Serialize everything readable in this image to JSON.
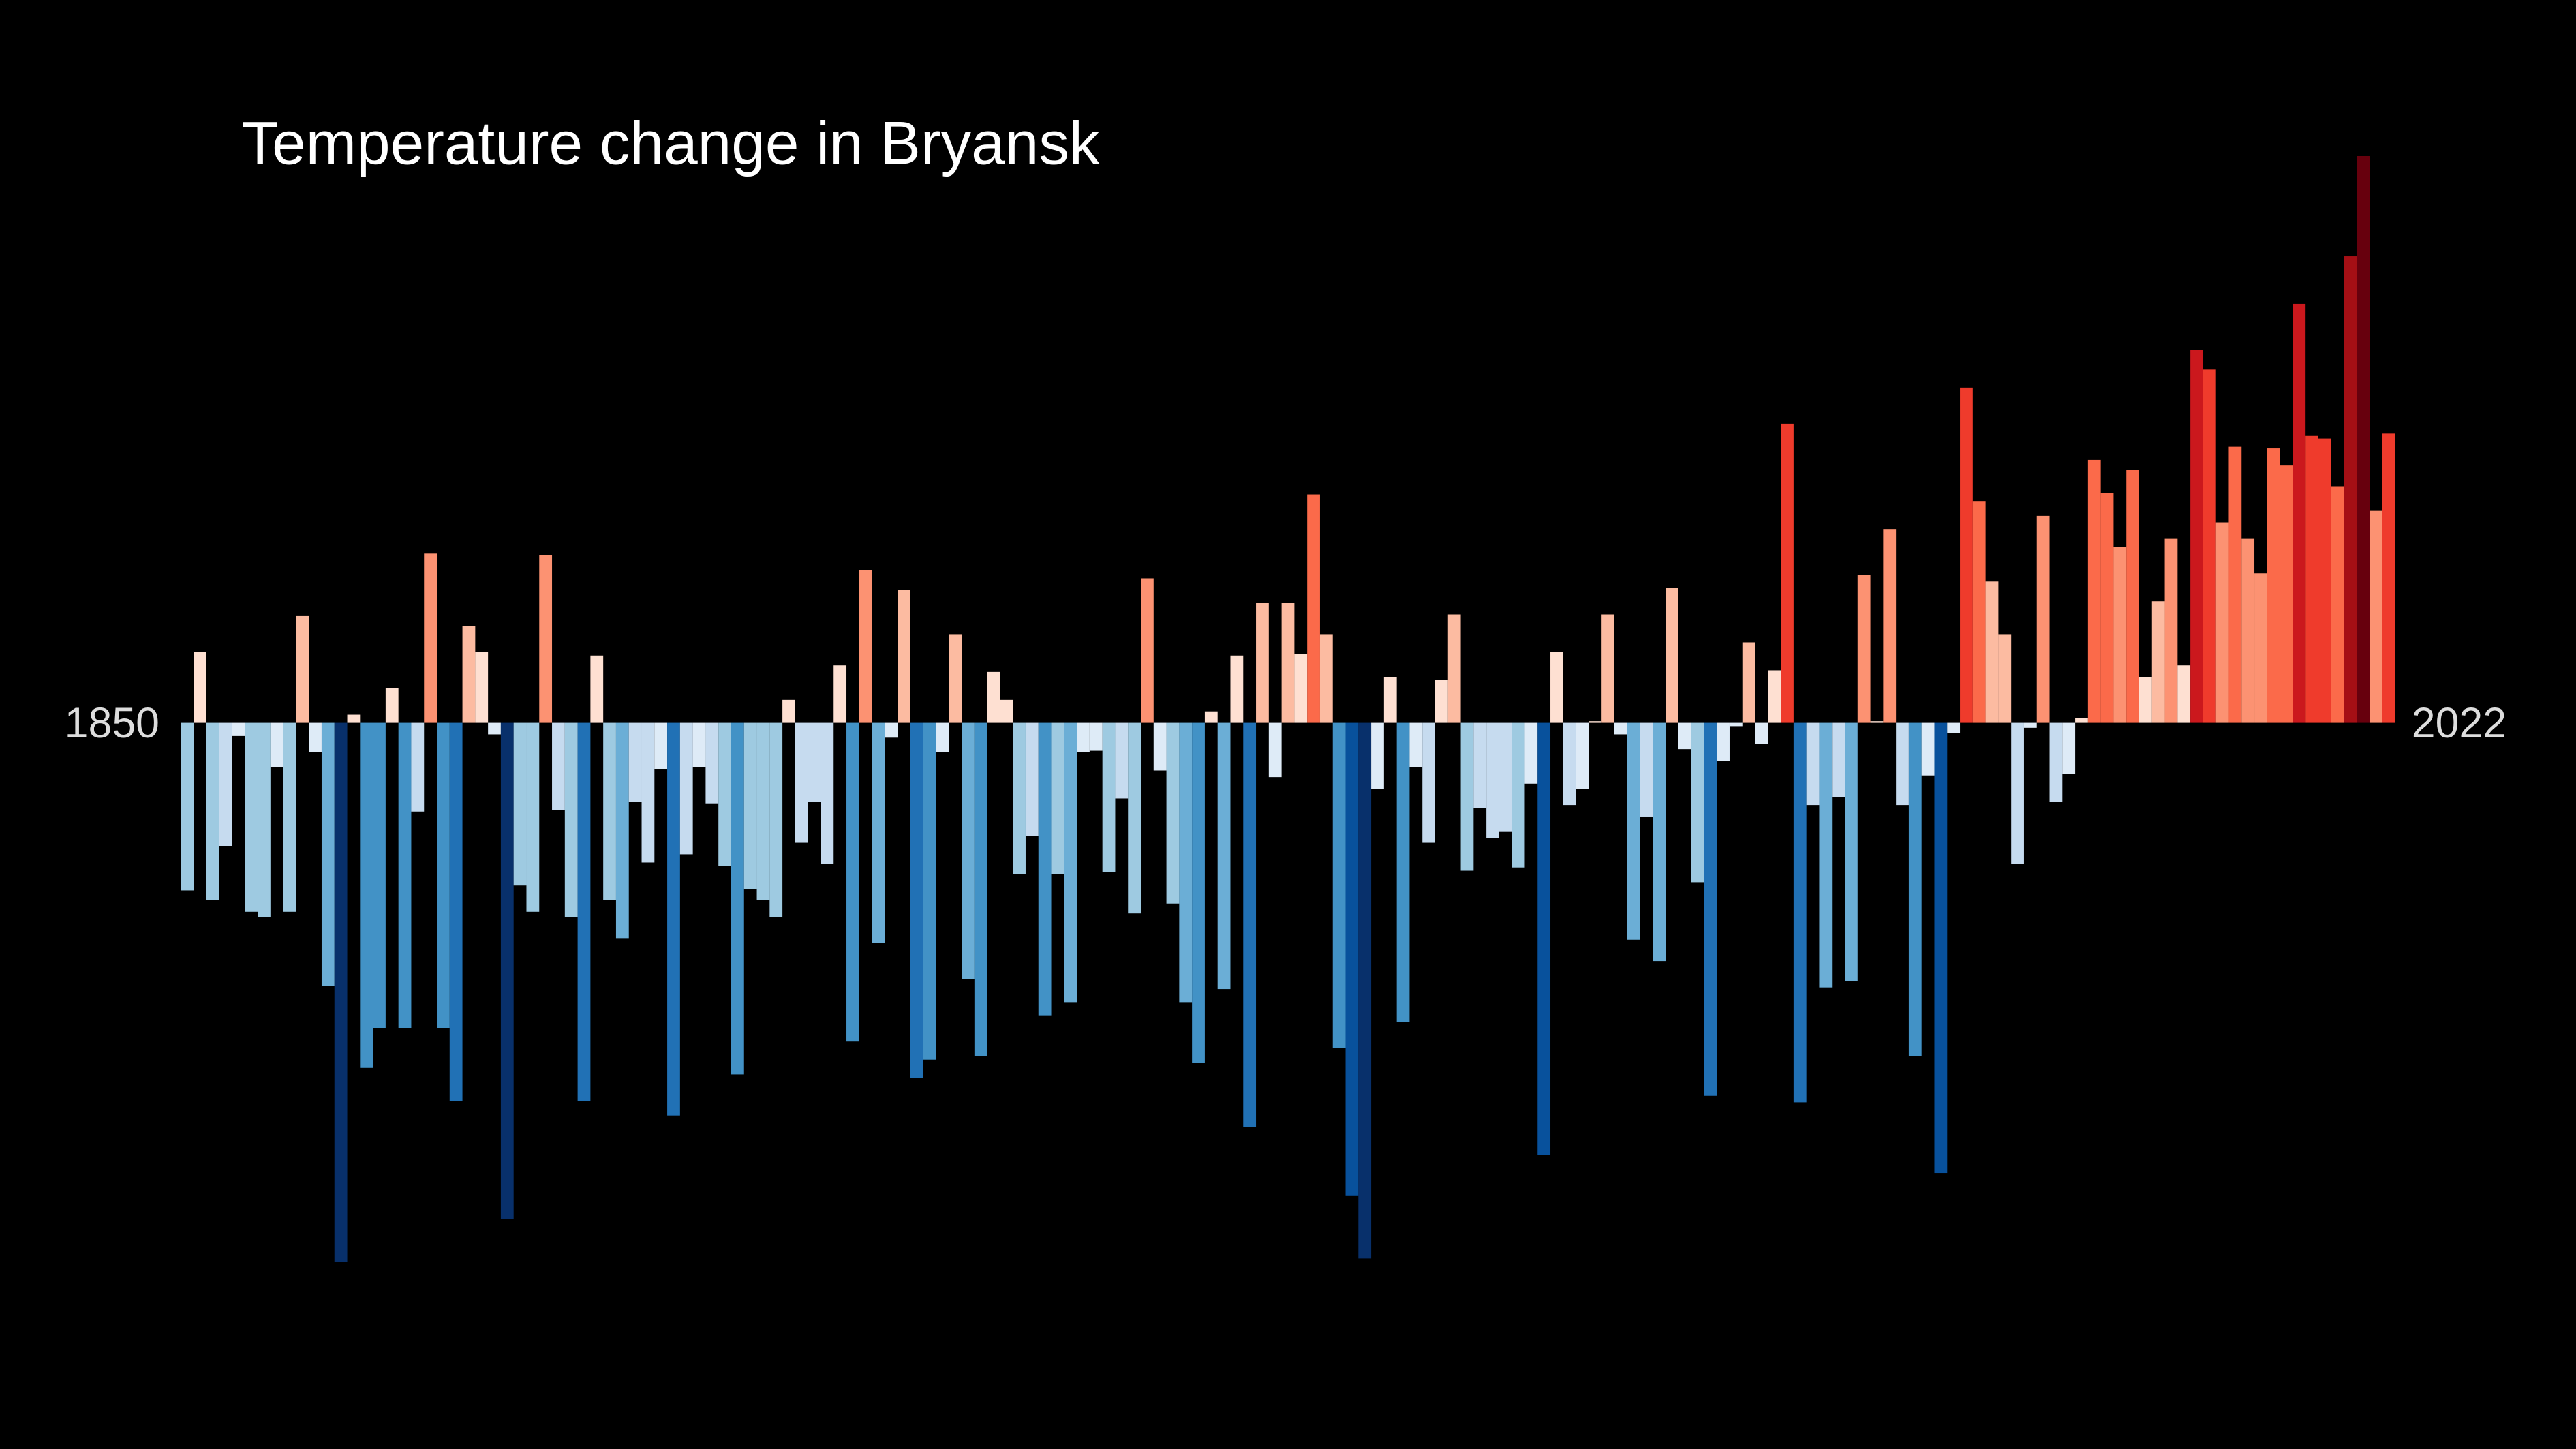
{
  "chart_data": {
    "type": "bar",
    "title": "Temperature change in Bryansk",
    "categories": [
      "1850",
      null,
      null,
      null,
      null,
      null,
      null,
      null,
      null,
      null,
      null,
      null,
      null,
      null,
      null,
      null,
      null,
      null,
      null,
      null,
      null,
      null,
      null,
      null,
      null,
      null,
      null,
      null,
      null,
      null,
      null,
      null,
      null,
      null,
      null,
      null,
      null,
      null,
      null,
      null,
      null,
      null,
      null,
      null,
      null,
      null,
      null,
      null,
      null,
      null,
      null,
      null,
      null,
      null,
      null,
      null,
      null,
      null,
      null,
      null,
      null,
      null,
      null,
      null,
      null,
      null,
      null,
      null,
      null,
      null,
      null,
      null,
      null,
      null,
      null,
      null,
      null,
      null,
      null,
      null,
      null,
      null,
      null,
      null,
      null,
      null,
      null,
      null,
      null,
      null,
      null,
      null,
      null,
      null,
      null,
      null,
      null,
      null,
      null,
      null,
      null,
      null,
      null,
      null,
      null,
      null,
      null,
      null,
      null,
      null,
      null,
      null,
      null,
      null,
      null,
      null,
      null,
      null,
      null,
      null,
      null,
      null,
      null,
      null,
      null,
      null,
      null,
      null,
      null,
      null,
      null,
      null,
      null,
      null,
      null,
      null,
      null,
      null,
      null,
      null,
      null,
      null,
      null,
      null,
      null,
      null,
      null,
      null,
      null,
      null,
      null,
      null,
      null,
      null,
      null,
      null,
      null,
      null,
      null,
      null,
      null,
      null,
      null,
      null,
      null,
      null,
      null,
      null,
      null,
      null,
      null,
      null,
      "2022"
    ],
    "values": [
      -1.02,
      0.43,
      -1.08,
      -0.75,
      -0.08,
      -1.15,
      -1.18,
      -0.27,
      -1.15,
      0.65,
      -0.18,
      -1.6,
      -3.28,
      0.05,
      -2.1,
      -1.86,
      0.21,
      -1.86,
      -0.54,
      1.03,
      -1.86,
      -2.3,
      0.59,
      0.43,
      -0.07,
      -3.02,
      -0.99,
      -1.15,
      1.02,
      -0.53,
      -1.18,
      -2.3,
      0.41,
      -1.08,
      -1.31,
      -0.48,
      -0.85,
      -0.28,
      -2.39,
      -0.8,
      -0.27,
      -0.49,
      -0.87,
      -2.14,
      -1.01,
      -1.08,
      -1.18,
      0.14,
      -0.73,
      -0.48,
      -0.86,
      0.35,
      -1.94,
      0.93,
      -1.34,
      -0.09,
      0.81,
      -2.16,
      -2.05,
      -0.18,
      0.54,
      -1.56,
      -2.03,
      0.31,
      0.14,
      -0.92,
      -0.69,
      -1.78,
      -0.92,
      -1.7,
      -0.18,
      -0.17,
      -0.91,
      -0.46,
      -1.16,
      0.88,
      -0.29,
      -1.1,
      -1.7,
      -2.07,
      0.07,
      -1.62,
      0.41,
      -2.46,
      0.73,
      -0.33,
      0.73,
      0.42,
      1.39,
      0.54,
      -1.98,
      -2.88,
      -3.26,
      -0.4,
      0.28,
      -1.82,
      -0.27,
      -0.73,
      0.26,
      0.66,
      -0.9,
      -0.52,
      -0.7,
      -0.66,
      -0.88,
      -0.37,
      -2.63,
      0.43,
      -0.5,
      -0.4,
      0.01,
      0.66,
      -0.07,
      -1.32,
      -0.57,
      -1.45,
      0.82,
      -0.16,
      -0.97,
      -2.27,
      -0.23,
      -0.02,
      0.49,
      -0.13,
      0.32,
      1.82,
      -2.31,
      -0.5,
      -1.61,
      -0.45,
      -1.57,
      0.9,
      0.01,
      1.18,
      -0.5,
      -2.03,
      -0.32,
      -2.74,
      -0.06,
      2.04,
      1.35,
      0.86,
      0.54,
      -0.86,
      -0.03,
      1.26,
      -0.48,
      -0.31,
      0.03,
      1.6,
      1.4,
      1.07,
      1.54,
      0.28,
      0.74,
      1.12,
      0.35,
      2.27,
      2.15,
      1.22,
      1.68,
      1.12,
      0.91,
      1.67,
      1.57,
      2.55,
      1.75,
      1.73,
      1.44,
      2.84,
      3.45,
      1.29,
      1.76
    ],
    "colors": [
      "#08306b",
      "#08519c",
      "#2171b5",
      "#4292c6",
      "#6baed6",
      "#9ecae1",
      "#c6dbef",
      "#deebf7",
      "#fee0d2",
      "#fcbba1",
      "#fc9272",
      "#fb6a4a",
      "#ef3b2c",
      "#cb181d",
      "#a50f15",
      "#67000d"
    ]
  }
}
